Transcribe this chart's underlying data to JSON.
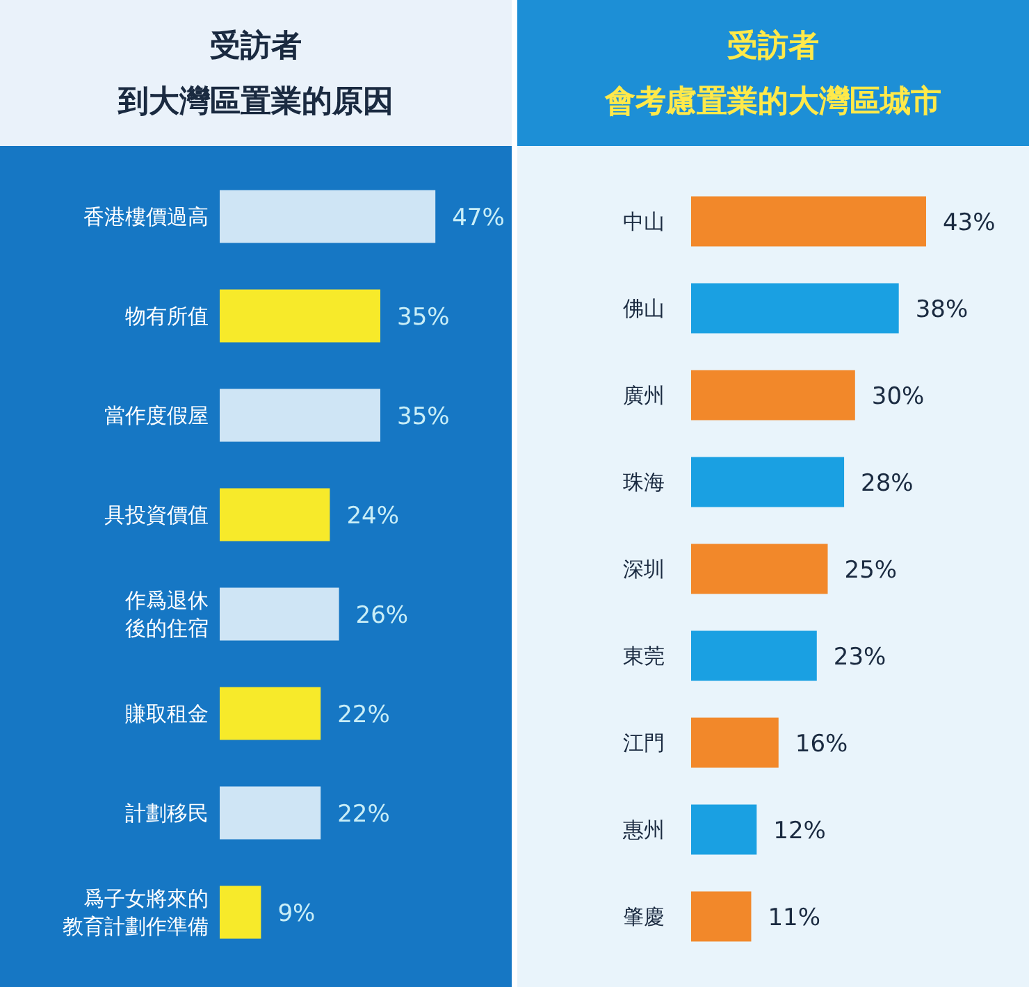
{
  "chart_data": [
    {
      "type": "bar",
      "orientation": "horizontal",
      "title": "受訪者",
      "subtitle": "到大灣區置業的原因",
      "categories": [
        "香港樓價過高",
        "物有所值",
        "當作度假屋",
        "具投資價值",
        "作爲退休後的住宿",
        "賺取租金",
        "計劃移民",
        "爲子女將來的教育計劃作準備"
      ],
      "values": [
        47,
        35,
        35,
        24,
        26,
        22,
        22,
        9
      ],
      "colors": [
        "#cfe5f5",
        "#f7ea2a",
        "#cfe5f5",
        "#f7ea2a",
        "#cfe5f5",
        "#f7ea2a",
        "#cfe5f5",
        "#f7ea2a"
      ],
      "value_labels": [
        "47%",
        "35%",
        "35%",
        "24%",
        "26%",
        "22%",
        "22%",
        "9%"
      ]
    },
    {
      "type": "bar",
      "orientation": "horizontal",
      "title": "受訪者",
      "subtitle": "會考慮置業的大灣區城市",
      "categories": [
        "中山",
        "佛山",
        "廣州",
        "珠海",
        "深圳",
        "東莞",
        "江門",
        "惠州",
        "肇慶"
      ],
      "values": [
        43,
        38,
        30,
        28,
        25,
        23,
        16,
        12,
        11
      ],
      "colors": [
        "#f2882a",
        "#1aa0e2",
        "#f2882a",
        "#1aa0e2",
        "#f2882a",
        "#1aa0e2",
        "#f2882a",
        "#1aa0e2",
        "#f2882a"
      ],
      "value_labels": [
        "43%",
        "38%",
        "30%",
        "28%",
        "25%",
        "23%",
        "16%",
        "12%",
        "11%"
      ]
    }
  ]
}
